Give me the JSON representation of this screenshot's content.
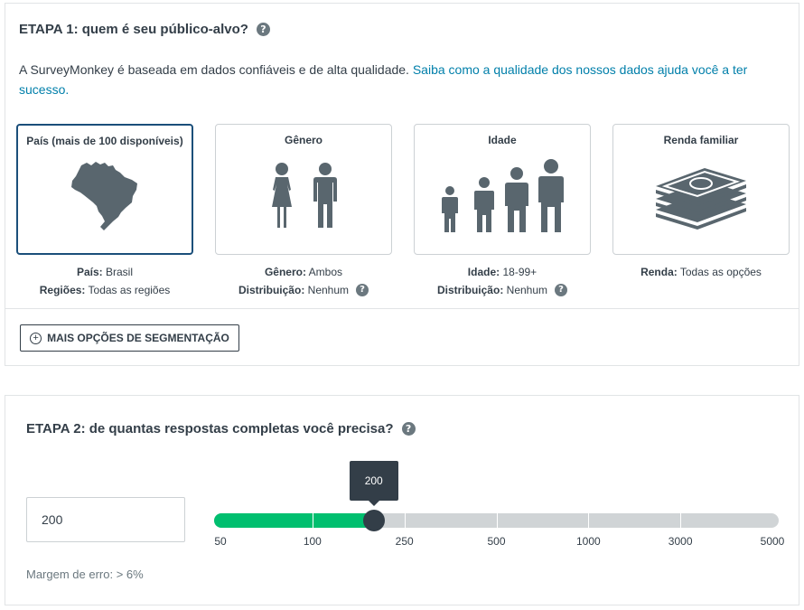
{
  "step1": {
    "title": "ETAPA 1: quem é seu público-alvo?",
    "help_icon": "question-circle-icon",
    "intro_text": "A SurveyMonkey é baseada em dados confiáveis e de alta qualidade. ",
    "intro_link": "Saiba como a qualidade dos nossos dados ajuda você a ter sucesso.",
    "link_color": "#007faa",
    "cards": [
      {
        "title": "País (mais de 100 disponíveis)",
        "icon": "brazil-map-icon",
        "selected": true
      },
      {
        "title": "Gênero",
        "icon": "gender-people-icon",
        "selected": false
      },
      {
        "title": "Idade",
        "icon": "age-people-icon",
        "selected": false
      },
      {
        "title": "Renda familiar",
        "icon": "money-stack-icon",
        "selected": false
      }
    ],
    "details": [
      {
        "l1_label": "País:",
        "l1_value": " Brasil",
        "l2_label": "Regiões:",
        "l2_value": " Todas as regiões"
      },
      {
        "l1_label": "Gênero:",
        "l1_value": " Ambos",
        "l2_label": "Distribuição:",
        "l2_value": " Nenhum"
      },
      {
        "l1_label": "Idade:",
        "l1_value": " 18-99+",
        "l2_label": "Distribuição:",
        "l2_value": " Nenhum"
      },
      {
        "l1_label": "Renda:",
        "l1_value": " Todas as opções"
      }
    ],
    "more_button": "MAIS OPÇÕES DE SEGMENTAÇÃO"
  },
  "step2": {
    "title": "ETAPA 2: de quantas respostas completas você precisa?",
    "input_value": "200",
    "slider": {
      "value": 200,
      "tooltip": "200",
      "ticks": [
        "50",
        "100",
        "250",
        "500",
        "1000",
        "3000",
        "5000"
      ],
      "fill_color": "#00bf6f"
    },
    "margin_text": "Margem de erro: > 6%"
  }
}
